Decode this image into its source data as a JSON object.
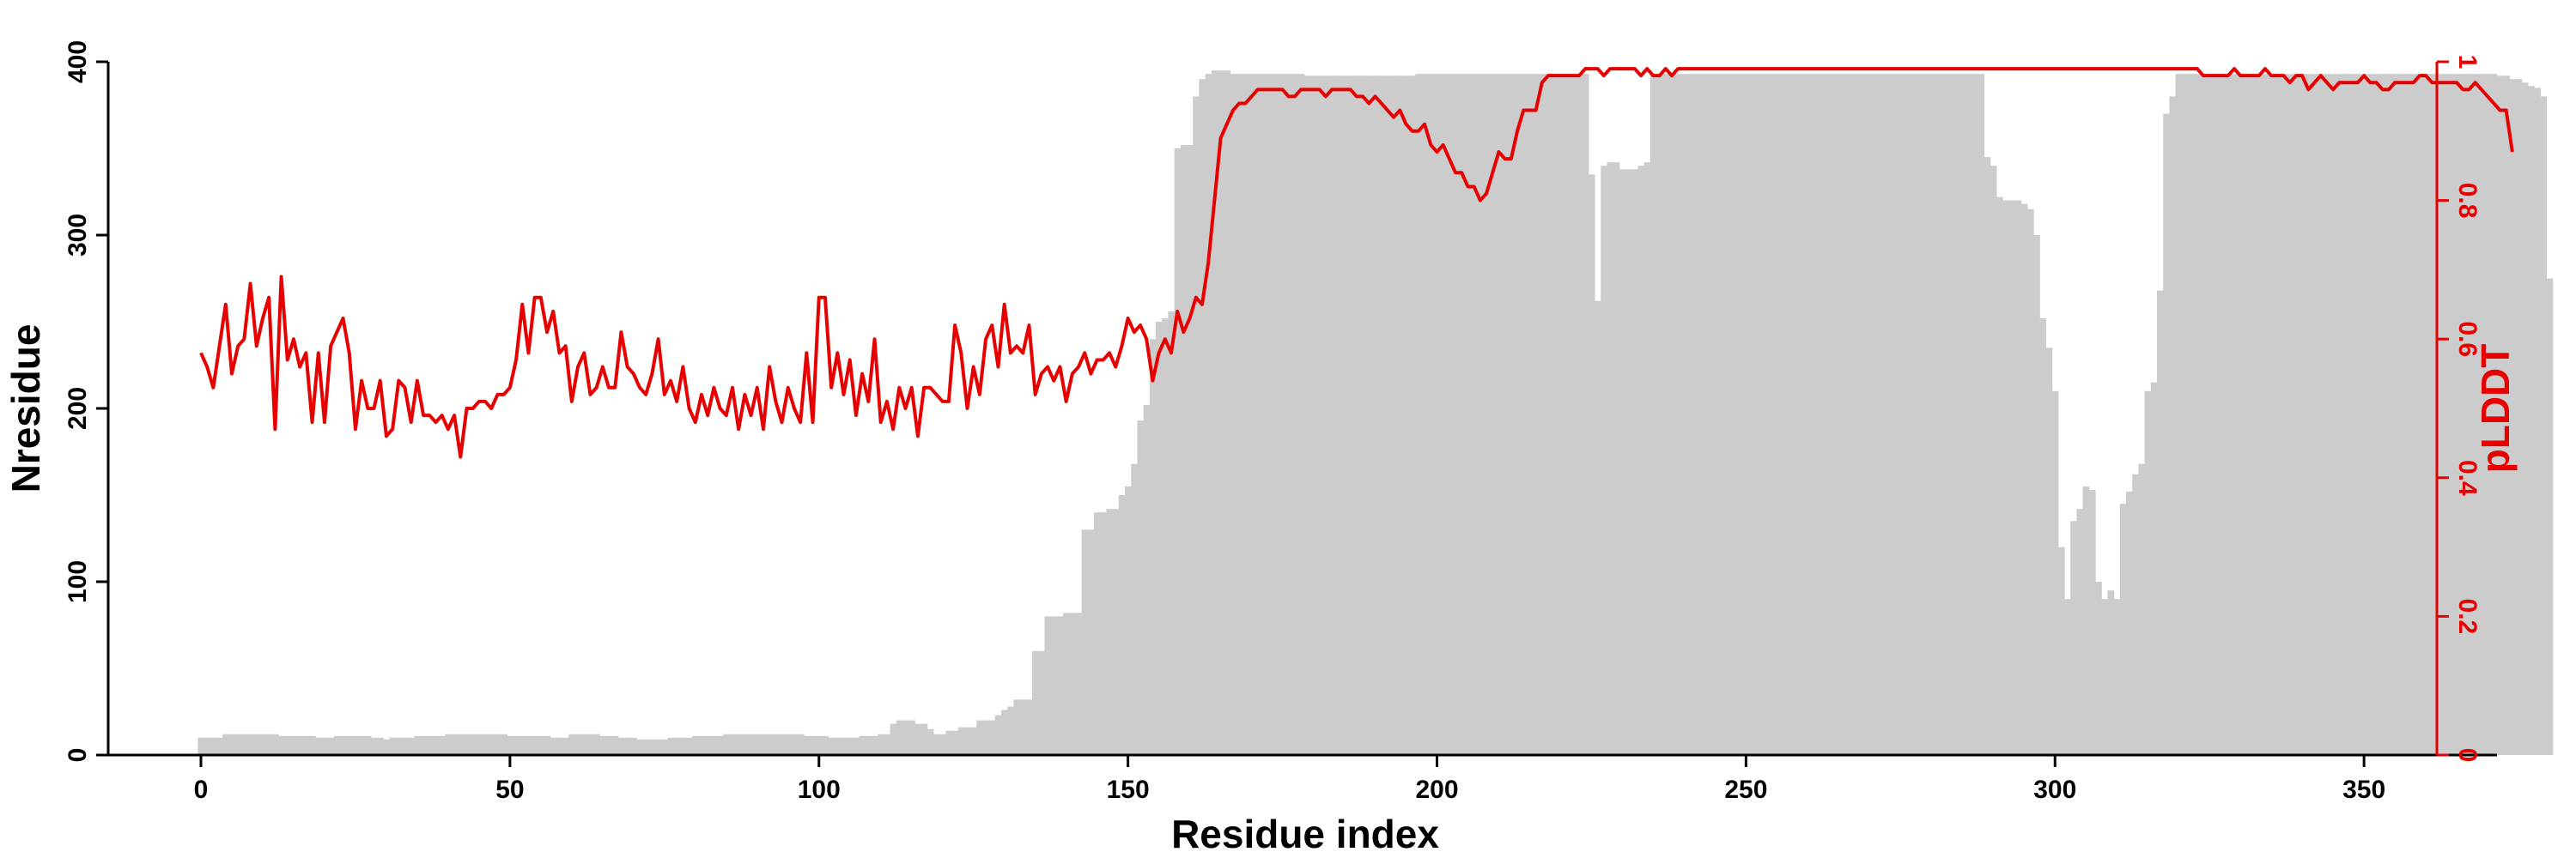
{
  "chart_data": {
    "type": "bar+line",
    "xlabel": "Residue index",
    "ylabel_left": "Nresidue",
    "ylabel_right": "pLDDT",
    "xlim": [
      -14,
      372
    ],
    "ylim_left": [
      0,
      400
    ],
    "ylim_right": [
      0,
      1
    ],
    "x_ticks": [
      0,
      50,
      100,
      150,
      200,
      250,
      300,
      350
    ],
    "y_ticks_left": [
      0,
      100,
      200,
      300,
      400
    ],
    "y_ticks_right": [
      0,
      0.2,
      0.4,
      0.6,
      0.8,
      1
    ],
    "grid": false,
    "colors": {
      "bars": "#cccccc",
      "line": "#e60000",
      "axes": "#000000",
      "right_axis": "#e60000"
    },
    "bars": {
      "name": "Nresidue",
      "x_start": 0,
      "values": [
        10,
        10,
        10,
        10,
        12,
        12,
        12,
        12,
        12,
        12,
        12,
        12,
        12,
        11,
        11,
        11,
        11,
        11,
        11,
        10,
        10,
        10,
        11,
        11,
        11,
        11,
        11,
        11,
        10,
        10,
        9,
        10,
        10,
        10,
        10,
        11,
        11,
        11,
        11,
        11,
        12,
        12,
        12,
        12,
        12,
        12,
        12,
        12,
        12,
        12,
        11,
        11,
        11,
        11,
        11,
        11,
        11,
        10,
        10,
        10,
        12,
        12,
        12,
        12,
        12,
        11,
        11,
        11,
        10,
        10,
        10,
        9,
        9,
        9,
        9,
        9,
        10,
        10,
        10,
        10,
        11,
        11,
        11,
        11,
        11,
        12,
        12,
        12,
        12,
        12,
        12,
        12,
        12,
        12,
        12,
        12,
        12,
        12,
        11,
        11,
        11,
        11,
        10,
        10,
        10,
        10,
        10,
        11,
        11,
        11,
        12,
        12,
        18,
        20,
        20,
        20,
        18,
        18,
        15,
        12,
        12,
        14,
        14,
        16,
        16,
        16,
        20,
        20,
        20,
        23,
        26,
        28,
        32,
        32,
        32,
        60,
        60,
        80,
        80,
        80,
        82,
        82,
        82,
        130,
        130,
        140,
        140,
        142,
        142,
        150,
        155,
        168,
        193,
        202,
        240,
        250,
        252,
        256,
        350,
        352,
        352,
        380,
        390,
        393,
        395,
        395,
        395,
        393,
        393,
        393,
        393,
        393,
        393,
        393,
        393,
        393,
        393,
        393,
        393,
        392,
        392,
        392,
        392,
        392,
        392,
        392,
        392,
        392,
        392,
        392,
        392,
        392,
        392,
        392,
        392,
        392,
        392,
        393,
        393,
        393,
        393,
        393,
        393,
        393,
        393,
        393,
        393,
        393,
        393,
        393,
        393,
        393,
        393,
        393,
        393,
        393,
        393,
        393,
        393,
        393,
        393,
        393,
        393,
        393,
        393,
        335,
        262,
        340,
        342,
        342,
        338,
        338,
        338,
        340,
        342,
        393,
        393,
        393,
        393,
        393,
        393,
        393,
        393,
        393,
        393,
        393,
        393,
        393,
        393,
        393,
        393,
        393,
        393,
        393,
        393,
        393,
        393,
        393,
        393,
        393,
        393,
        393,
        393,
        393,
        393,
        393,
        393,
        393,
        393,
        393,
        393,
        393,
        393,
        393,
        393,
        393,
        393,
        393,
        393,
        393,
        393,
        393,
        393,
        393,
        393,
        393,
        393,
        393,
        393,
        345,
        340,
        322,
        320,
        320,
        320,
        318,
        315,
        300,
        252,
        235,
        210,
        120,
        90,
        135,
        142,
        155,
        153,
        100,
        90,
        95,
        90,
        145,
        152,
        162,
        168,
        210,
        215,
        268,
        370,
        380,
        393,
        393,
        393,
        393,
        393,
        393,
        393,
        393,
        393,
        393,
        393,
        393,
        393,
        393,
        393,
        393,
        393,
        393,
        393,
        393,
        393,
        393,
        393,
        393,
        393,
        393,
        393,
        393,
        393,
        393,
        393,
        393,
        393,
        393,
        393,
        393,
        393,
        393,
        393,
        393,
        393,
        393,
        393,
        393,
        393,
        393,
        393,
        393,
        393,
        393,
        393,
        393,
        392,
        392,
        390,
        390,
        388,
        386,
        385,
        380,
        275
      ]
    },
    "line": {
      "name": "pLDDT",
      "x_start": 0,
      "values": [
        0.58,
        0.56,
        0.53,
        0.59,
        0.65,
        0.55,
        0.59,
        0.6,
        0.68,
        0.59,
        0.63,
        0.66,
        0.47,
        0.69,
        0.57,
        0.6,
        0.56,
        0.58,
        0.48,
        0.58,
        0.48,
        0.59,
        0.61,
        0.63,
        0.58,
        0.47,
        0.54,
        0.5,
        0.5,
        0.54,
        0.46,
        0.47,
        0.54,
        0.53,
        0.48,
        0.54,
        0.49,
        0.49,
        0.48,
        0.49,
        0.47,
        0.49,
        0.43,
        0.5,
        0.5,
        0.51,
        0.51,
        0.5,
        0.52,
        0.52,
        0.53,
        0.57,
        0.65,
        0.58,
        0.66,
        0.66,
        0.61,
        0.64,
        0.58,
        0.59,
        0.51,
        0.56,
        0.58,
        0.52,
        0.53,
        0.56,
        0.53,
        0.53,
        0.61,
        0.56,
        0.55,
        0.53,
        0.52,
        0.55,
        0.6,
        0.52,
        0.54,
        0.51,
        0.56,
        0.5,
        0.48,
        0.52,
        0.49,
        0.53,
        0.5,
        0.49,
        0.53,
        0.47,
        0.52,
        0.49,
        0.53,
        0.47,
        0.56,
        0.51,
        0.48,
        0.53,
        0.5,
        0.48,
        0.58,
        0.48,
        0.66,
        0.66,
        0.53,
        0.58,
        0.52,
        0.57,
        0.49,
        0.55,
        0.51,
        0.6,
        0.48,
        0.51,
        0.47,
        0.53,
        0.5,
        0.53,
        0.46,
        0.53,
        0.53,
        0.52,
        0.51,
        0.51,
        0.62,
        0.58,
        0.5,
        0.56,
        0.52,
        0.6,
        0.62,
        0.56,
        0.65,
        0.58,
        0.59,
        0.58,
        0.62,
        0.52,
        0.55,
        0.56,
        0.54,
        0.56,
        0.51,
        0.55,
        0.56,
        0.58,
        0.55,
        0.57,
        0.57,
        0.58,
        0.56,
        0.59,
        0.63,
        0.61,
        0.62,
        0.6,
        0.54,
        0.58,
        0.6,
        0.58,
        0.64,
        0.61,
        0.63,
        0.66,
        0.65,
        0.71,
        0.8,
        0.89,
        0.91,
        0.93,
        0.94,
        0.94,
        0.95,
        0.96,
        0.96,
        0.96,
        0.96,
        0.96,
        0.95,
        0.95,
        0.96,
        0.96,
        0.96,
        0.96,
        0.95,
        0.96,
        0.96,
        0.96,
        0.96,
        0.95,
        0.95,
        0.94,
        0.95,
        0.94,
        0.93,
        0.92,
        0.93,
        0.91,
        0.9,
        0.9,
        0.91,
        0.88,
        0.87,
        0.88,
        0.86,
        0.84,
        0.84,
        0.82,
        0.82,
        0.8,
        0.81,
        0.84,
        0.87,
        0.86,
        0.86,
        0.9,
        0.93,
        0.93,
        0.93,
        0.97,
        0.98,
        0.98,
        0.98,
        0.98,
        0.98,
        0.98,
        0.99,
        0.99,
        0.99,
        0.98,
        0.99,
        0.99,
        0.99,
        0.99,
        0.99,
        0.98,
        0.99,
        0.98,
        0.98,
        0.99,
        0.98,
        0.99,
        0.99,
        0.99,
        0.99,
        0.99,
        0.99,
        0.99,
        0.99,
        0.99,
        0.99,
        0.99,
        0.99,
        0.99,
        0.99,
        0.99,
        0.99,
        0.99,
        0.99,
        0.99,
        0.99,
        0.99,
        0.99,
        0.99,
        0.99,
        0.99,
        0.99,
        0.99,
        0.99,
        0.99,
        0.99,
        0.99,
        0.99,
        0.99,
        0.99,
        0.99,
        0.99,
        0.99,
        0.99,
        0.99,
        0.99,
        0.99,
        0.99,
        0.99,
        0.99,
        0.99,
        0.99,
        0.99,
        0.99,
        0.99,
        0.99,
        0.99,
        0.99,
        0.99,
        0.99,
        0.99,
        0.99,
        0.99,
        0.99,
        0.99,
        0.99,
        0.99,
        0.99,
        0.99,
        0.99,
        0.99,
        0.99,
        0.99,
        0.99,
        0.99,
        0.99,
        0.99,
        0.99,
        0.99,
        0.99,
        0.99,
        0.99,
        0.99,
        0.99,
        0.99,
        0.99,
        0.99,
        0.99,
        0.99,
        0.99,
        0.99,
        0.98,
        0.98,
        0.98,
        0.98,
        0.98,
        0.99,
        0.98,
        0.98,
        0.98,
        0.98,
        0.99,
        0.98,
        0.98,
        0.98,
        0.97,
        0.98,
        0.98,
        0.96,
        0.97,
        0.98,
        0.97,
        0.96,
        0.97,
        0.97,
        0.97,
        0.97,
        0.98,
        0.97,
        0.97,
        0.96,
        0.96,
        0.97,
        0.97,
        0.97,
        0.97,
        0.98,
        0.98,
        0.97,
        0.97,
        0.97,
        0.97,
        0.97,
        0.96,
        0.96,
        0.97,
        0.96,
        0.95,
        0.94,
        0.93,
        0.93,
        0.87
      ]
    }
  }
}
